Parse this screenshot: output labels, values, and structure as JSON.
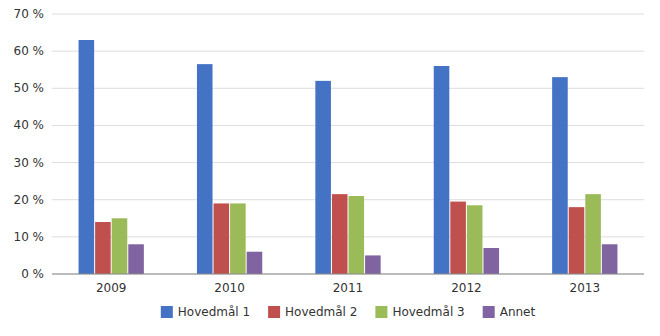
{
  "chart_data": {
    "type": "bar",
    "categories": [
      "2009",
      "2010",
      "2011",
      "2012",
      "2013"
    ],
    "series": [
      {
        "name": "Hovedmål 1",
        "color": "#4472C4",
        "values": [
          63,
          56.5,
          52,
          56,
          53
        ]
      },
      {
        "name": "Hovedmål 2",
        "color": "#C0504D",
        "values": [
          14,
          19,
          21.5,
          19.5,
          18
        ]
      },
      {
        "name": "Hovedmål 3",
        "color": "#9BBB59",
        "values": [
          15,
          19,
          21,
          18.5,
          21.5
        ]
      },
      {
        "name": "Annet",
        "color": "#8064A2",
        "values": [
          8,
          6,
          5,
          7,
          8
        ]
      }
    ],
    "ylim": [
      0,
      70
    ],
    "yticks": [
      {
        "value": 0,
        "label": "0 %"
      },
      {
        "value": 10,
        "label": "10 %"
      },
      {
        "value": 20,
        "label": "20 %"
      },
      {
        "value": 30,
        "label": "30 %"
      },
      {
        "value": 40,
        "label": "40 %"
      },
      {
        "value": 50,
        "label": "50 %"
      },
      {
        "value": 60,
        "label": "60 %"
      },
      {
        "value": 70,
        "label": "70 %"
      }
    ],
    "grid": true,
    "legend": "bottom"
  }
}
